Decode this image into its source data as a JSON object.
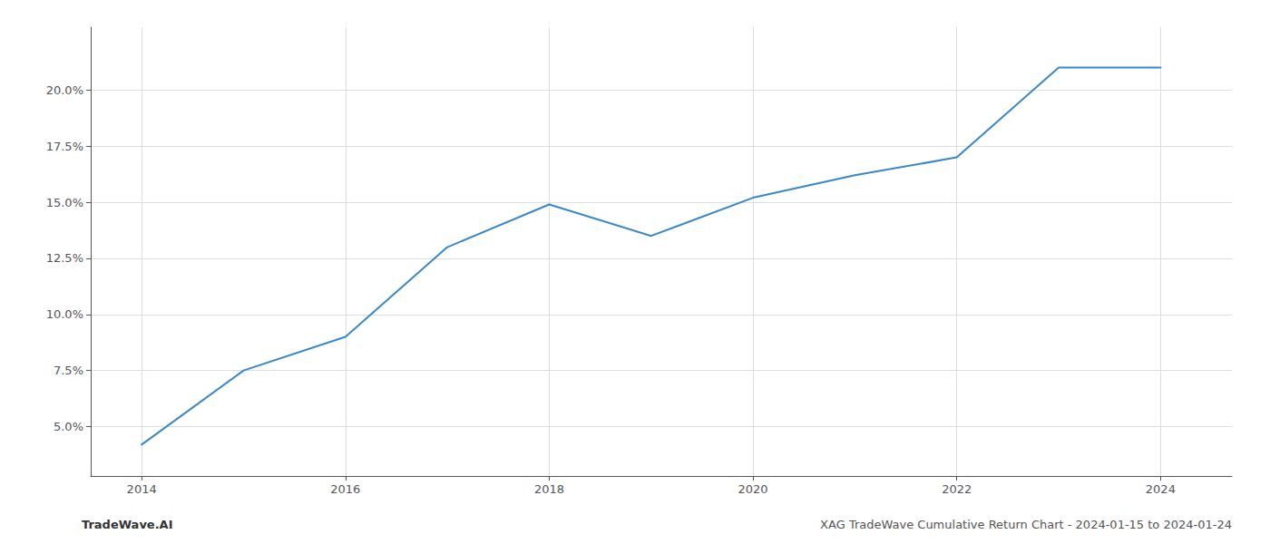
{
  "chart_data": {
    "type": "line",
    "x": [
      2014,
      2015,
      2016,
      2017,
      2018,
      2019,
      2020,
      2021,
      2022,
      2023,
      2024
    ],
    "values": [
      0.042,
      0.075,
      0.09,
      0.13,
      0.149,
      0.135,
      0.152,
      0.162,
      0.17,
      0.21,
      0.21
    ],
    "color": "#3a87c8",
    "xlim": [
      2013.5,
      2024.7
    ],
    "xticks": [
      2014,
      2016,
      2018,
      2020,
      2022,
      2024
    ],
    "ylim": [
      0.028,
      0.228
    ],
    "yticks": [
      {
        "value": 0.05,
        "label": "5.0%"
      },
      {
        "value": 0.075,
        "label": "7.5%"
      },
      {
        "value": 0.1,
        "label": "10.0%"
      },
      {
        "value": 0.125,
        "label": "12.5%"
      },
      {
        "value": 0.15,
        "label": "15.0%"
      },
      {
        "value": 0.175,
        "label": "17.5%"
      },
      {
        "value": 0.2,
        "label": "20.0%"
      }
    ],
    "grid": true,
    "annotations": [
      "TradeWave.AI",
      "XAG TradeWave Cumulative Return Chart - 2024-01-15 to 2024-01-24"
    ]
  }
}
